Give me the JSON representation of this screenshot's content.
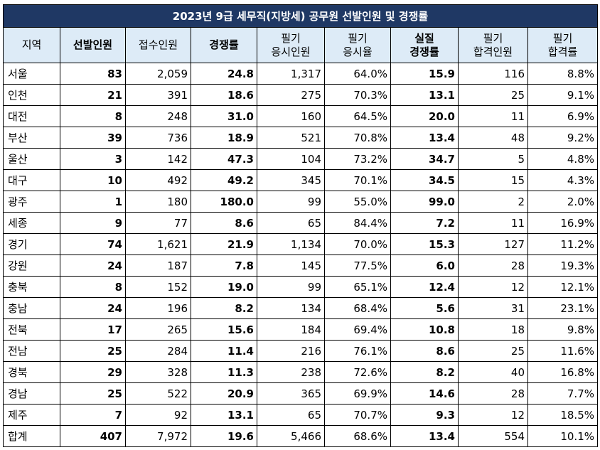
{
  "title": "2023년 9급 세무직(지방세) 공무원 선발인원 및 경쟁률",
  "headers": [
    {
      "line1": "지역",
      "line2": "",
      "bold": false
    },
    {
      "line1": "선발인원",
      "line2": "",
      "bold": true
    },
    {
      "line1": "접수인원",
      "line2": "",
      "bold": false
    },
    {
      "line1": "경쟁률",
      "line2": "",
      "bold": true
    },
    {
      "line1": "필기",
      "line2": "응시인원",
      "bold": false
    },
    {
      "line1": "필기",
      "line2": "응시율",
      "bold": false
    },
    {
      "line1": "실질",
      "line2": "경쟁률",
      "bold": true
    },
    {
      "line1": "필기",
      "line2": "합격인원",
      "bold": false
    },
    {
      "line1": "필기",
      "line2": "합격률",
      "bold": false
    }
  ],
  "rows": [
    [
      "서울",
      "83",
      "2,059",
      "24.8",
      "1,317",
      "64.0%",
      "15.9",
      "116",
      "8.8%"
    ],
    [
      "인천",
      "21",
      "391",
      "18.6",
      "275",
      "70.3%",
      "13.1",
      "25",
      "9.1%"
    ],
    [
      "대전",
      "8",
      "248",
      "31.0",
      "160",
      "64.5%",
      "20.0",
      "11",
      "6.9%"
    ],
    [
      "부산",
      "39",
      "736",
      "18.9",
      "521",
      "70.8%",
      "13.4",
      "48",
      "9.2%"
    ],
    [
      "울산",
      "3",
      "142",
      "47.3",
      "104",
      "73.2%",
      "34.7",
      "5",
      "4.8%"
    ],
    [
      "대구",
      "10",
      "492",
      "49.2",
      "345",
      "70.1%",
      "34.5",
      "15",
      "4.3%"
    ],
    [
      "광주",
      "1",
      "180",
      "180.0",
      "99",
      "55.0%",
      "99.0",
      "2",
      "2.0%"
    ],
    [
      "세종",
      "9",
      "77",
      "8.6",
      "65",
      "84.4%",
      "7.2",
      "11",
      "16.9%"
    ],
    [
      "경기",
      "74",
      "1,621",
      "21.9",
      "1,134",
      "70.0%",
      "15.3",
      "127",
      "11.2%"
    ],
    [
      "강원",
      "24",
      "187",
      "7.8",
      "145",
      "77.5%",
      "6.0",
      "28",
      "19.3%"
    ],
    [
      "충북",
      "8",
      "152",
      "19.0",
      "99",
      "65.1%",
      "12.4",
      "12",
      "12.1%"
    ],
    [
      "충남",
      "24",
      "196",
      "8.2",
      "134",
      "68.4%",
      "5.6",
      "31",
      "23.1%"
    ],
    [
      "전북",
      "17",
      "265",
      "15.6",
      "184",
      "69.4%",
      "10.8",
      "18",
      "9.8%"
    ],
    [
      "전남",
      "25",
      "284",
      "11.4",
      "216",
      "76.1%",
      "8.6",
      "25",
      "11.6%"
    ],
    [
      "경북",
      "29",
      "328",
      "11.3",
      "238",
      "72.6%",
      "8.2",
      "40",
      "16.8%"
    ],
    [
      "경남",
      "25",
      "522",
      "20.9",
      "365",
      "69.9%",
      "14.6",
      "28",
      "7.7%"
    ],
    [
      "제주",
      "7",
      "92",
      "13.1",
      "65",
      "70.7%",
      "9.3",
      "12",
      "18.5%"
    ],
    [
      "합계",
      "407",
      "7,972",
      "19.6",
      "5,466",
      "68.6%",
      "13.4",
      "554",
      "10.1%"
    ]
  ],
  "colors": {
    "title_bg": "#1f3864",
    "header_bg": "#ddebf7"
  }
}
